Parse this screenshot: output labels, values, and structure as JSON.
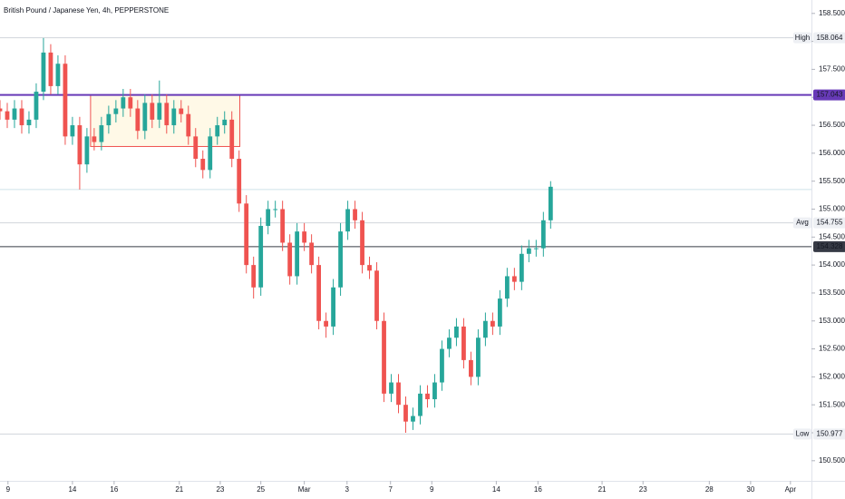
{
  "chart_data": {
    "type": "candlestick",
    "title": "British Pound / Japanese Yen, 4h, PEPPERSTONE",
    "xlim": [
      0,
      112
    ],
    "ylim": [
      150.14,
      158.74
    ],
    "xticks": [
      {
        "value": 1.1,
        "label": "9"
      },
      {
        "value": 10,
        "label": "14"
      },
      {
        "value": 15.75,
        "label": "16"
      },
      {
        "value": 24.75,
        "label": "21"
      },
      {
        "value": 30.4,
        "label": "23"
      },
      {
        "value": 36,
        "label": "25"
      },
      {
        "value": 42,
        "label": "Mar"
      },
      {
        "value": 47.9,
        "label": "3"
      },
      {
        "value": 53.9,
        "label": "7"
      },
      {
        "value": 59.6,
        "label": "9"
      },
      {
        "value": 68.5,
        "label": "14"
      },
      {
        "value": 74.25,
        "label": "16"
      },
      {
        "value": 83.1,
        "label": "21"
      },
      {
        "value": 88.75,
        "label": "23"
      },
      {
        "value": 97.9,
        "label": "28"
      },
      {
        "value": 103.6,
        "label": "30"
      },
      {
        "value": 109.1,
        "label": "Apr"
      }
    ],
    "yticks": [
      {
        "value": 150.5,
        "label": "150.500"
      },
      {
        "value": 151,
        "label": "151.000"
      },
      {
        "value": 151.5,
        "label": "151.500"
      },
      {
        "value": 152,
        "label": "152.000"
      },
      {
        "value": 152.5,
        "label": "152.500"
      },
      {
        "value": 153,
        "label": "153.000"
      },
      {
        "value": 153.5,
        "label": "153.500"
      },
      {
        "value": 154,
        "label": "154.000"
      },
      {
        "value": 154.5,
        "label": "154.500"
      },
      {
        "value": 155,
        "label": "155.000"
      },
      {
        "value": 155.5,
        "label": "155.500"
      },
      {
        "value": 156,
        "label": "156.000"
      },
      {
        "value": 156.5,
        "label": "156.500"
      },
      {
        "value": 157,
        "label": "157.000"
      },
      {
        "value": 157.5,
        "label": "157.500"
      },
      {
        "value": 158,
        "label": "158.000"
      },
      {
        "value": 158.5,
        "label": "158.500"
      }
    ],
    "up_color": "#26a69a",
    "down_color": "#ef5350",
    "open": [
      156.8,
      156.75,
      156.6,
      156.8,
      156.5,
      156.6,
      157.1,
      157.8,
      157.2,
      157.6,
      156.3,
      156.5,
      155.8,
      156.3,
      156.2,
      156.5,
      156.7,
      156.8,
      157.0,
      156.8,
      156.4,
      156.9,
      156.6,
      156.9,
      156.5,
      156.8,
      156.7,
      156.3,
      155.9,
      155.7,
      156.3,
      156.5,
      156.6,
      155.9,
      155.1,
      154.0,
      153.6,
      154.7,
      155.0,
      155.0,
      154.4,
      153.8,
      154.6,
      154.4,
      154.0,
      153.0,
      152.9,
      153.6,
      154.6,
      155.0,
      154.8,
      154.0,
      153.9,
      153.0,
      151.7,
      151.9,
      151.5,
      151.2,
      151.3,
      151.7,
      151.6,
      151.9,
      152.5,
      152.7,
      152.9,
      152.3,
      152.0,
      152.7,
      153.0,
      152.9,
      153.4,
      153.8,
      153.7,
      154.2,
      154.3,
      154.3,
      154.8
    ],
    "high": [
      156.95,
      156.9,
      156.95,
      156.95,
      156.75,
      157.25,
      158.06,
      157.95,
      157.75,
      157.75,
      156.65,
      156.65,
      156.45,
      156.45,
      156.65,
      156.85,
      156.95,
      157.15,
      157.15,
      156.95,
      157.05,
      157.05,
      157.3,
      157.05,
      156.95,
      156.95,
      156.85,
      156.45,
      156.05,
      156.45,
      156.65,
      156.75,
      156.75,
      156.05,
      155.25,
      154.15,
      154.85,
      155.15,
      155.15,
      155.15,
      154.55,
      154.75,
      154.75,
      154.55,
      154.15,
      153.15,
      153.75,
      154.75,
      155.15,
      155.15,
      154.95,
      154.15,
      154.05,
      153.15,
      152.05,
      152.05,
      151.65,
      151.45,
      151.85,
      151.85,
      152.05,
      152.65,
      152.85,
      153.05,
      153.05,
      152.45,
      152.85,
      153.15,
      153.15,
      153.55,
      153.95,
      153.95,
      154.35,
      154.45,
      154.45,
      154.95,
      155.5
    ],
    "low": [
      156.6,
      156.45,
      156.45,
      156.35,
      156.35,
      156.45,
      156.95,
      157.05,
      157.05,
      156.15,
      156.15,
      155.35,
      155.65,
      156.05,
      156.05,
      156.35,
      156.55,
      156.65,
      156.65,
      156.25,
      156.25,
      156.45,
      156.45,
      156.35,
      156.35,
      156.55,
      156.15,
      155.75,
      155.55,
      155.55,
      156.15,
      156.35,
      155.75,
      154.95,
      153.85,
      153.4,
      153.45,
      154.55,
      154.85,
      154.25,
      153.65,
      153.65,
      154.25,
      153.85,
      152.85,
      152.7,
      152.75,
      153.45,
      154.45,
      154.65,
      153.85,
      153.75,
      152.85,
      151.55,
      151.55,
      151.35,
      151.0,
      151.05,
      151.15,
      151.45,
      151.45,
      151.75,
      152.35,
      152.55,
      152.15,
      151.85,
      151.85,
      152.55,
      152.75,
      152.75,
      153.25,
      153.55,
      153.55,
      154.05,
      154.15,
      154.15,
      154.65
    ],
    "close": [
      156.75,
      156.6,
      156.8,
      156.5,
      156.6,
      157.1,
      157.8,
      157.2,
      157.6,
      156.3,
      156.5,
      155.8,
      156.3,
      156.2,
      156.5,
      156.7,
      156.8,
      157.0,
      156.8,
      156.4,
      156.9,
      156.6,
      156.9,
      156.5,
      156.8,
      156.7,
      156.3,
      155.9,
      155.7,
      156.3,
      156.5,
      156.6,
      155.9,
      155.1,
      154.0,
      153.6,
      154.7,
      155.0,
      155.0,
      154.4,
      153.8,
      154.6,
      154.4,
      154.0,
      153.0,
      152.9,
      153.6,
      154.6,
      155.0,
      154.8,
      154.0,
      153.9,
      153.0,
      151.7,
      151.9,
      151.5,
      151.2,
      151.3,
      151.7,
      151.6,
      151.9,
      152.5,
      152.7,
      152.9,
      152.3,
      152.0,
      152.7,
      153.0,
      152.9,
      153.4,
      153.8,
      153.7,
      154.2,
      154.3,
      154.3,
      154.8,
      155.4
    ],
    "levels": [
      {
        "name": "High",
        "value": 158.064,
        "label": "158.064",
        "color": "#d1d4dc"
      },
      {
        "value": 157.043,
        "label": "157.043",
        "color": "#673ab7"
      },
      {
        "value": 155.35,
        "color": "#cfe3ea"
      },
      {
        "name": "Avg",
        "value": 154.755,
        "label": "154.755",
        "color": "#d1d4dc"
      },
      {
        "value": 154.328,
        "label": "154.328",
        "color": "#363a45"
      },
      {
        "name": "Low",
        "value": 150.977,
        "label": "150.977",
        "color": "#d1d4dc"
      }
    ],
    "rectangle": {
      "x": [
        12.5,
        33.1
      ],
      "y": [
        156.12,
        157.04
      ],
      "color": "#ef5350"
    }
  }
}
